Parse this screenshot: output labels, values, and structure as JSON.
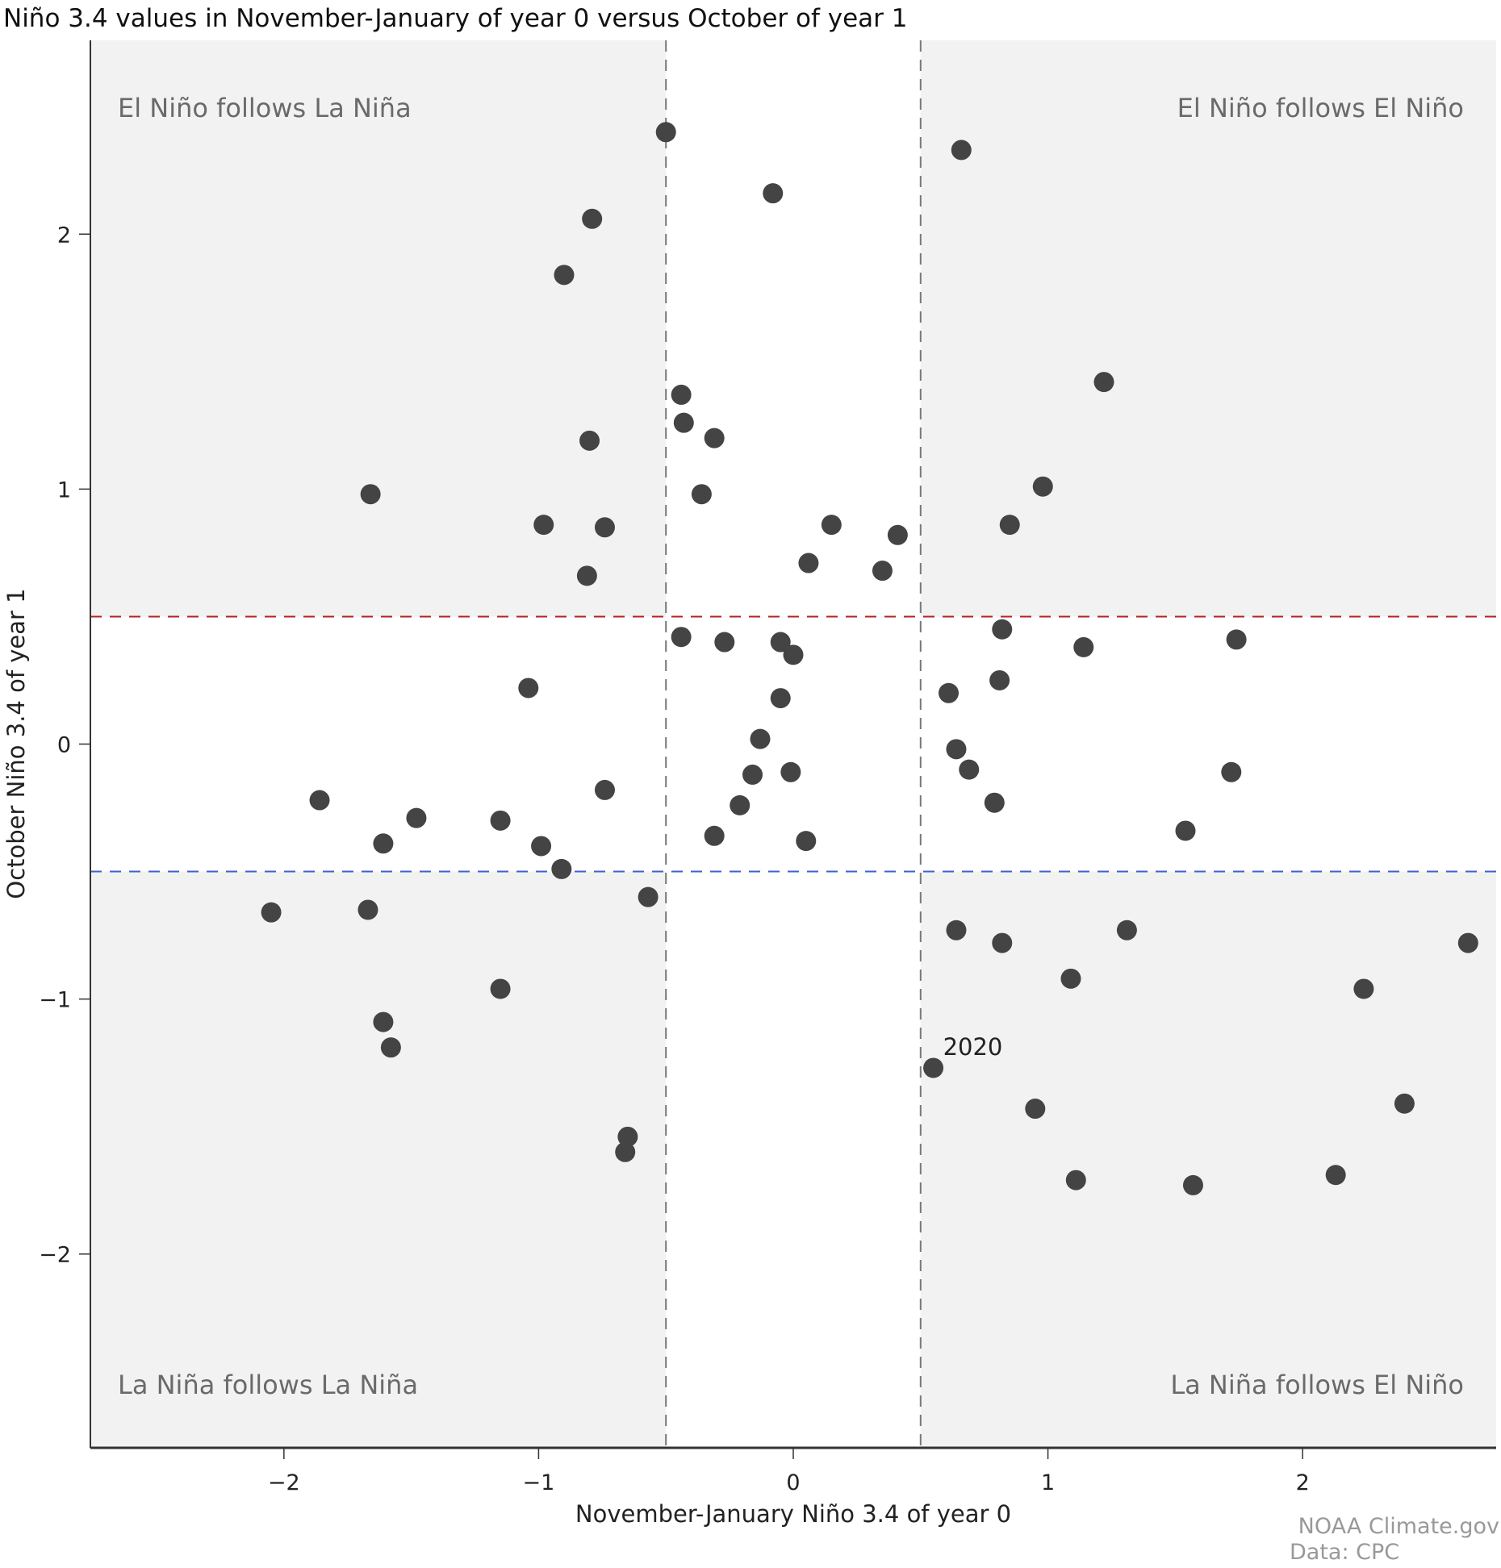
{
  "chart_data": {
    "type": "scatter",
    "title": "Niño 3.4 values in November-January of year 0 versus October of year 1",
    "xlabel": "November-January Niño 3.4 of year 0",
    "ylabel": "October Niño 3.4 of year 1",
    "xlim": [
      -2.76,
      2.76
    ],
    "ylim": [
      -2.76,
      2.76
    ],
    "xticks": [
      -2,
      -1,
      0,
      1,
      2
    ],
    "yticks": [
      -2,
      -1,
      0,
      1,
      2
    ],
    "xtick_labels": [
      "−2",
      "−1",
      "0",
      "1",
      "2"
    ],
    "ytick_labels": [
      "−2",
      "−1",
      "0",
      "1",
      "2"
    ],
    "grid": false,
    "thresholds": {
      "x": [
        -0.5,
        0.5
      ],
      "y_el_nino": 0.5,
      "y_la_nina": -0.5
    },
    "quadrant_labels": {
      "top_left": "El Niño follows La Niña",
      "top_right": "El Niño follows El Niño",
      "bottom_left": "La Niña follows La Niña",
      "bottom_right": "La Niña follows El Niño"
    },
    "annotations": [
      {
        "text": "2020",
        "x": 0.55,
        "y": -1.27
      }
    ],
    "points": [
      [
        -0.5,
        2.4
      ],
      [
        0.66,
        2.33
      ],
      [
        -0.08,
        2.16
      ],
      [
        -0.79,
        2.06
      ],
      [
        -0.9,
        1.84
      ],
      [
        1.22,
        1.42
      ],
      [
        -0.44,
        1.37
      ],
      [
        -0.43,
        1.26
      ],
      [
        -0.31,
        1.2
      ],
      [
        -0.8,
        1.19
      ],
      [
        0.98,
        1.01
      ],
      [
        -1.66,
        0.98
      ],
      [
        -0.36,
        0.98
      ],
      [
        -0.98,
        0.86
      ],
      [
        -0.74,
        0.85
      ],
      [
        0.85,
        0.86
      ],
      [
        0.15,
        0.86
      ],
      [
        0.41,
        0.82
      ],
      [
        0.06,
        0.71
      ],
      [
        0.35,
        0.68
      ],
      [
        -0.81,
        0.66
      ],
      [
        0.82,
        0.45
      ],
      [
        -0.44,
        0.42
      ],
      [
        1.74,
        0.41
      ],
      [
        -0.27,
        0.4
      ],
      [
        -0.05,
        0.4
      ],
      [
        0.0,
        0.35
      ],
      [
        1.14,
        0.38
      ],
      [
        -1.04,
        0.22
      ],
      [
        0.61,
        0.2
      ],
      [
        0.81,
        0.25
      ],
      [
        -0.05,
        0.18
      ],
      [
        -0.13,
        0.02
      ],
      [
        0.64,
        -0.02
      ],
      [
        0.69,
        -0.1
      ],
      [
        -0.16,
        -0.12
      ],
      [
        -0.01,
        -0.11
      ],
      [
        1.72,
        -0.11
      ],
      [
        -0.74,
        -0.18
      ],
      [
        -1.86,
        -0.22
      ],
      [
        0.79,
        -0.23
      ],
      [
        -0.21,
        -0.24
      ],
      [
        -1.48,
        -0.29
      ],
      [
        -1.15,
        -0.3
      ],
      [
        1.54,
        -0.34
      ],
      [
        -0.31,
        -0.36
      ],
      [
        0.05,
        -0.38
      ],
      [
        -1.61,
        -0.39
      ],
      [
        -0.99,
        -0.4
      ],
      [
        -0.91,
        -0.49
      ],
      [
        -0.57,
        -0.6
      ],
      [
        -2.05,
        -0.66
      ],
      [
        -1.67,
        -0.65
      ],
      [
        0.64,
        -0.73
      ],
      [
        1.31,
        -0.73
      ],
      [
        0.82,
        -0.78
      ],
      [
        2.65,
        -0.78
      ],
      [
        1.09,
        -0.92
      ],
      [
        -1.15,
        -0.96
      ],
      [
        2.24,
        -0.96
      ],
      [
        -1.61,
        -1.09
      ],
      [
        -1.58,
        -1.19
      ],
      [
        0.55,
        -1.27
      ],
      [
        0.95,
        -1.43
      ],
      [
        2.4,
        -1.41
      ],
      [
        -0.65,
        -1.54
      ],
      [
        -0.66,
        -1.6
      ],
      [
        1.11,
        -1.71
      ],
      [
        2.13,
        -1.69
      ],
      [
        1.57,
        -1.73
      ]
    ],
    "colors": {
      "points": "#444444",
      "shade": "#f2f2f2",
      "el_nino_line": "#b22222",
      "la_nina_line": "#3a62d0",
      "threshold_line": "#777777"
    }
  },
  "credits": [
    "NOAA Climate.gov",
    "Data: CPC"
  ]
}
